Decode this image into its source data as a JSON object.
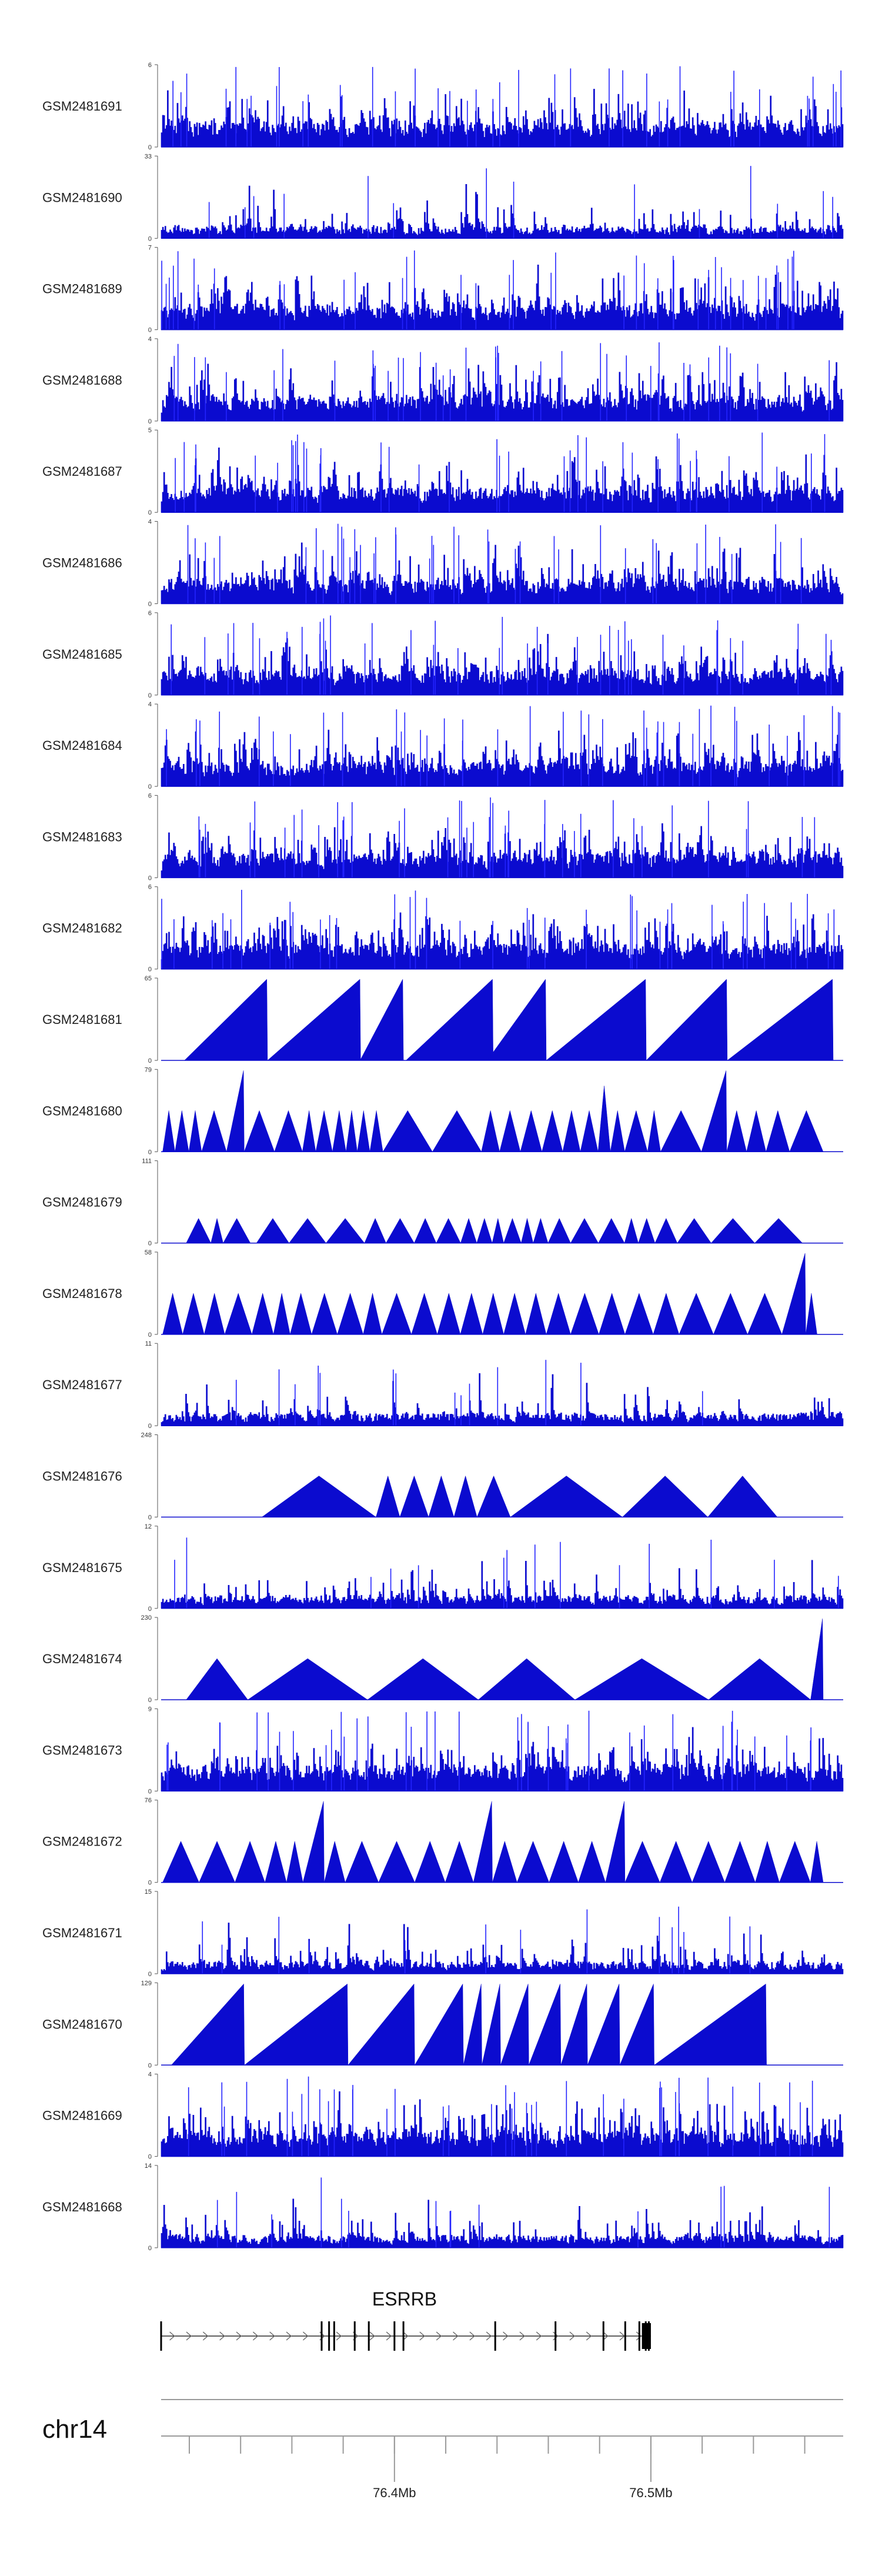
{
  "chart_data": {
    "type": "area",
    "title": "",
    "genome_axis": {
      "chromosome": "chr14",
      "tick_labels": [
        {
          "label": "76.4Mb",
          "pos": 76.4
        },
        {
          "label": "76.5Mb",
          "pos": 76.5
        }
      ],
      "xlim": [
        76.309,
        76.575
      ],
      "minor_tick_step": 0.02
    },
    "gene": {
      "name": "ESRRB",
      "start": 76.309,
      "end": 76.5,
      "strand": "+",
      "exons": [
        76.309,
        76.3716,
        76.3745,
        76.3765,
        76.3845,
        76.39,
        76.4,
        76.4035,
        76.4393,
        76.4628,
        76.4815,
        76.49,
        76.4955,
        76.498,
        76.4992
      ],
      "cds_block": [
        76.4965,
        76.5
      ]
    },
    "series": [
      {
        "name": "GSM2481691",
        "ymax_label": "6",
        "ymin_label": "0",
        "ymax": 6,
        "pattern": "dense",
        "seed": 91
      },
      {
        "name": "GSM2481690",
        "ymax_label": "33",
        "ymin_label": "0",
        "ymax": 33,
        "pattern": "mixed",
        "seed": 90
      },
      {
        "name": "GSM2481689",
        "ymax_label": "7",
        "ymin_label": "0",
        "ymax": 7,
        "pattern": "dense",
        "seed": 89
      },
      {
        "name": "GSM2481688",
        "ymax_label": "4",
        "ymin_label": "0",
        "ymax": 4,
        "pattern": "dense",
        "seed": 88
      },
      {
        "name": "GSM2481687",
        "ymax_label": "5",
        "ymin_label": "0",
        "ymax": 5,
        "pattern": "dense",
        "seed": 87
      },
      {
        "name": "GSM2481686",
        "ymax_label": "4",
        "ymin_label": "0",
        "ymax": 4,
        "pattern": "dense",
        "seed": 86
      },
      {
        "name": "GSM2481685",
        "ymax_label": "6",
        "ymin_label": "0",
        "ymax": 6,
        "pattern": "dense",
        "seed": 85
      },
      {
        "name": "GSM2481684",
        "ymax_label": "4",
        "ymin_label": "0",
        "ymax": 4,
        "pattern": "dense",
        "seed": 84
      },
      {
        "name": "GSM2481683",
        "ymax_label": "6",
        "ymin_label": "0",
        "ymax": 6,
        "pattern": "dense",
        "seed": 83
      },
      {
        "name": "GSM2481682",
        "ymax_label": "6",
        "ymin_label": "0",
        "ymax": 6,
        "pattern": "dense",
        "seed": 82
      },
      {
        "name": "GSM2481681",
        "ymax_label": "65",
        "ymin_label": "0",
        "ymax": 65,
        "pattern": "triangles",
        "triangles": [
          [
            76.3181,
            76.3505,
            1.0
          ],
          [
            76.3505,
            76.3868,
            1.0
          ],
          [
            76.3866,
            76.4035,
            1.0
          ],
          [
            76.4045,
            76.4385,
            1.0
          ],
          [
            76.4362,
            76.4592,
            1.0
          ],
          [
            76.4592,
            76.4982,
            1.0
          ],
          [
            76.4982,
            76.5298,
            1.0
          ],
          [
            76.5298,
            76.5711,
            1.0
          ]
        ]
      },
      {
        "name": "GSM2481680",
        "ymax_label": "79",
        "ymin_label": "0",
        "ymax": 79,
        "pattern": "triangles",
        "triangles": [
          [
            76.3096,
            76.3144,
            0.5
          ],
          [
            76.3144,
            76.3198,
            0.5
          ],
          [
            76.3198,
            76.3248,
            0.5
          ],
          [
            76.3248,
            76.3345,
            0.5
          ],
          [
            76.3345,
            76.3414,
            1.0
          ],
          [
            76.3414,
            76.3532,
            0.5
          ],
          [
            76.3532,
            76.3641,
            0.5
          ],
          [
            76.3641,
            76.3693,
            0.5
          ],
          [
            76.3693,
            76.3758,
            0.5
          ],
          [
            76.3758,
            76.3811,
            0.5
          ],
          [
            76.3811,
            76.3855,
            0.5
          ],
          [
            76.3855,
            76.3904,
            0.5
          ],
          [
            76.3904,
            76.3955,
            0.5
          ],
          [
            76.3955,
            76.4148,
            0.5
          ],
          [
            76.4148,
            76.4339,
            0.5
          ],
          [
            76.4339,
            76.441,
            0.5
          ],
          [
            76.441,
            76.4491,
            0.5
          ],
          [
            76.4491,
            76.4575,
            0.5
          ],
          [
            76.4575,
            76.4656,
            0.5
          ],
          [
            76.4656,
            76.4725,
            0.5
          ],
          [
            76.4725,
            76.4794,
            0.5
          ],
          [
            76.4794,
            76.4842,
            0.8
          ],
          [
            76.4842,
            76.4898,
            0.5
          ],
          [
            76.4898,
            76.4987,
            0.5
          ],
          [
            76.4987,
            76.5038,
            0.5
          ],
          [
            76.5038,
            76.5197,
            0.5
          ],
          [
            76.5197,
            76.5296,
            0.95
          ],
          [
            76.5296,
            76.5373,
            0.5
          ],
          [
            76.5373,
            76.5449,
            0.5
          ],
          [
            76.5449,
            76.5541,
            0.5
          ],
          [
            76.5541,
            76.5672,
            0.5
          ]
        ]
      },
      {
        "name": "GSM2481679",
        "ymax_label": "111",
        "ymin_label": "0",
        "ymax": 111,
        "pattern": "triangles",
        "triangles": [
          [
            76.3188,
            76.3284,
            0.3
          ],
          [
            76.3284,
            76.3332,
            0.3
          ],
          [
            76.3332,
            76.3438,
            0.3
          ],
          [
            76.3462,
            76.3589,
            0.3
          ],
          [
            76.3589,
            76.3733,
            0.3
          ],
          [
            76.3733,
            76.3883,
            0.3
          ],
          [
            76.3883,
            76.3967,
            0.3
          ],
          [
            76.3967,
            76.4077,
            0.3
          ],
          [
            76.4077,
            76.4163,
            0.3
          ],
          [
            76.4163,
            76.4258,
            0.3
          ],
          [
            76.4258,
            76.4321,
            0.3
          ],
          [
            76.4321,
            76.4381,
            0.3
          ],
          [
            76.4381,
            76.4426,
            0.3
          ],
          [
            76.4426,
            76.4494,
            0.3
          ],
          [
            76.4494,
            76.4541,
            0.3
          ],
          [
            76.4541,
            76.4599,
            0.3
          ],
          [
            76.4599,
            76.4687,
            0.3
          ],
          [
            76.4687,
            76.4795,
            0.3
          ],
          [
            76.4795,
            76.4897,
            0.3
          ],
          [
            76.4897,
            76.4951,
            0.3
          ],
          [
            76.4951,
            76.5016,
            0.3
          ],
          [
            76.5016,
            76.5103,
            0.3
          ],
          [
            76.5103,
            76.5235,
            0.3
          ],
          [
            76.5235,
            76.5405,
            0.3
          ],
          [
            76.5405,
            76.5591,
            0.3
          ]
        ]
      },
      {
        "name": "GSM2481678",
        "ymax_label": "58",
        "ymin_label": "0",
        "ymax": 58,
        "pattern": "triangles",
        "triangles": [
          [
            76.3096,
            76.3174,
            0.5
          ],
          [
            76.3174,
            76.3258,
            0.5
          ],
          [
            76.3258,
            76.3338,
            0.5
          ],
          [
            76.3338,
            76.3444,
            0.5
          ],
          [
            76.3444,
            76.3528,
            0.5
          ],
          [
            76.3528,
            76.3593,
            0.5
          ],
          [
            76.3593,
            76.3677,
            0.5
          ],
          [
            76.3677,
            76.3777,
            0.5
          ],
          [
            76.3777,
            76.3878,
            0.5
          ],
          [
            76.3878,
            76.3951,
            0.5
          ],
          [
            76.3951,
            76.4066,
            0.5
          ],
          [
            76.4066,
            76.4167,
            0.5
          ],
          [
            76.4167,
            76.4257,
            0.5
          ],
          [
            76.4257,
            76.4344,
            0.5
          ],
          [
            76.4344,
            76.4426,
            0.5
          ],
          [
            76.4426,
            76.4511,
            0.5
          ],
          [
            76.4511,
            76.4592,
            0.5
          ],
          [
            76.4592,
            76.4687,
            0.5
          ],
          [
            76.4687,
            76.4797,
            0.5
          ],
          [
            76.4797,
            76.4899,
            0.5
          ],
          [
            76.4899,
            76.5009,
            0.5
          ],
          [
            76.5009,
            76.511,
            0.5
          ],
          [
            76.511,
            76.5244,
            0.5
          ],
          [
            76.5244,
            76.5377,
            0.5
          ],
          [
            76.5377,
            76.5511,
            0.5
          ],
          [
            76.5511,
            76.5604,
            0.95
          ],
          [
            76.5604,
            76.5648,
            0.5
          ]
        ]
      },
      {
        "name": "GSM2481677",
        "ymax_label": "11",
        "ymin_label": "0",
        "ymax": 11,
        "pattern": "sparse",
        "seed": 77
      },
      {
        "name": "GSM2481676",
        "ymax_label": "248",
        "ymin_label": "0",
        "ymax": 248,
        "pattern": "triangles",
        "triangles": [
          [
            76.3483,
            76.3928,
            0.5
          ],
          [
            76.3928,
            76.4021,
            0.5
          ],
          [
            76.4021,
            76.4133,
            0.5
          ],
          [
            76.4133,
            76.4232,
            0.5
          ],
          [
            76.4232,
            76.4322,
            0.5
          ],
          [
            76.4322,
            76.4452,
            0.5
          ],
          [
            76.4452,
            76.4889,
            0.5
          ],
          [
            76.4889,
            76.5222,
            0.5
          ],
          [
            76.5222,
            76.5493,
            0.5
          ]
        ]
      },
      {
        "name": "GSM2481675",
        "ymax_label": "12",
        "ymin_label": "0",
        "ymax": 12,
        "pattern": "sparse",
        "seed": 75
      },
      {
        "name": "GSM2481674",
        "ymax_label": "230",
        "ymin_label": "0",
        "ymax": 230,
        "pattern": "triangles",
        "triangles": [
          [
            76.3188,
            76.3428,
            0.5
          ],
          [
            76.3428,
            76.3895,
            0.5
          ],
          [
            76.3895,
            76.4327,
            0.5
          ],
          [
            76.4327,
            76.4704,
            0.5
          ],
          [
            76.4704,
            76.5225,
            0.5
          ],
          [
            76.5225,
            76.5623,
            0.5
          ],
          [
            76.5623,
            76.5672,
            0.95
          ]
        ]
      },
      {
        "name": "GSM2481673",
        "ymax_label": "9",
        "ymin_label": "0",
        "ymax": 9,
        "pattern": "dense",
        "seed": 73
      },
      {
        "name": "GSM2481672",
        "ymax_label": "76",
        "ymin_label": "0",
        "ymax": 76,
        "pattern": "triangles",
        "triangles": [
          [
            76.3096,
            76.3238,
            0.5
          ],
          [
            76.3238,
            76.3378,
            0.5
          ],
          [
            76.3378,
            76.3495,
            0.5
          ],
          [
            76.3495,
            76.3579,
            0.5
          ],
          [
            76.3579,
            76.3643,
            0.5
          ],
          [
            76.3643,
            76.3726,
            0.95
          ],
          [
            76.3726,
            76.3808,
            0.5
          ],
          [
            76.3808,
            76.3938,
            0.5
          ],
          [
            76.3938,
            76.4079,
            0.5
          ],
          [
            76.4079,
            76.4198,
            0.5
          ],
          [
            76.4198,
            76.4308,
            0.5
          ],
          [
            76.4308,
            76.4382,
            0.95
          ],
          [
            76.4382,
            76.4478,
            0.5
          ],
          [
            76.4478,
            76.4603,
            0.5
          ],
          [
            76.4603,
            76.4717,
            0.5
          ],
          [
            76.4717,
            76.4823,
            0.5
          ],
          [
            76.4823,
            76.4899,
            0.95
          ],
          [
            76.4899,
            76.5035,
            0.5
          ],
          [
            76.5035,
            76.5161,
            0.5
          ],
          [
            76.5161,
            76.5288,
            0.5
          ],
          [
            76.5288,
            76.5407,
            0.5
          ],
          [
            76.5407,
            76.5501,
            0.5
          ],
          [
            76.5501,
            76.5622,
            0.5
          ],
          [
            76.5622,
            76.5672,
            0.5
          ]
        ]
      },
      {
        "name": "GSM2481671",
        "ymax_label": "15",
        "ymin_label": "0",
        "ymax": 15,
        "pattern": "sparse",
        "seed": 71
      },
      {
        "name": "GSM2481670",
        "ymax_label": "129",
        "ymin_label": "0",
        "ymax": 129,
        "pattern": "triangles",
        "triangles": [
          [
            76.313,
            76.3415,
            1.0
          ],
          [
            76.3415,
            76.3819,
            1.0
          ],
          [
            76.3819,
            76.4079,
            1.0
          ],
          [
            76.4079,
            76.4269,
            1.0
          ],
          [
            76.4269,
            76.4341,
            1.0
          ],
          [
            76.4341,
            76.4414,
            1.0
          ],
          [
            76.4414,
            76.4524,
            1.0
          ],
          [
            76.4524,
            76.4649,
            1.0
          ],
          [
            76.4649,
            76.4753,
            1.0
          ],
          [
            76.4753,
            76.4879,
            1.0
          ],
          [
            76.4879,
            76.5013,
            1.0
          ],
          [
            76.5013,
            76.5451,
            1.0
          ]
        ]
      },
      {
        "name": "GSM2481669",
        "ymax_label": "4",
        "ymin_label": "0",
        "ymax": 4,
        "pattern": "dense",
        "seed": 69
      },
      {
        "name": "GSM2481668",
        "ymax_label": "14",
        "ymin_label": "0",
        "ymax": 14,
        "pattern": "sparse",
        "seed": 68
      }
    ],
    "colors": {
      "fill": "#0b0bcf",
      "stroke": "#2323ff",
      "axis": "#555555",
      "gene": "#000000",
      "axis_line": "#9a9a9a"
    }
  }
}
